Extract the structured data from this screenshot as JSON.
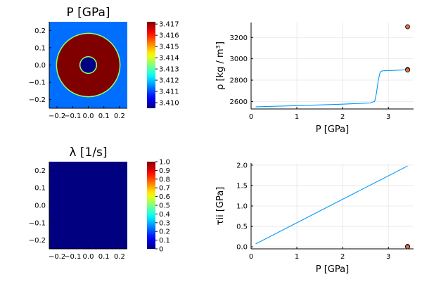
{
  "chart_data": [
    {
      "type": "heatmap",
      "title": "P [GPa]",
      "xticks": [
        "−0.2",
        "−0.1",
        "0.0",
        "0.1",
        "0.2"
      ],
      "xtick_values": [
        -0.2,
        -0.1,
        0.0,
        0.1,
        0.2
      ],
      "yticks": [
        "0.2",
        "0.1",
        "0.0",
        "−0.1",
        "−0.2"
      ],
      "ytick_values": [
        0.2,
        0.1,
        0.0,
        -0.1,
        -0.2
      ],
      "xlim": [
        -0.25,
        0.25
      ],
      "ylim": [
        -0.25,
        0.25
      ],
      "colorbar": {
        "ticks": [
          "3.417",
          "3.416",
          "3.415",
          "3.414",
          "3.413",
          "3.412",
          "3.411",
          "3.410"
        ],
        "tick_values": [
          3.417,
          3.416,
          3.415,
          3.414,
          3.413,
          3.412,
          3.411,
          3.41
        ],
        "range": [
          3.4095,
          3.4172
        ],
        "colormap": "jet"
      },
      "field": {
        "background": 3.4113,
        "inclusion_outer_radius": 0.2,
        "inclusion_value": 3.4172,
        "ring_value": 3.4135,
        "inner_hole_radius": 0.05,
        "inner_value": 3.4095
      }
    },
    {
      "type": "line",
      "title": "",
      "xlabel": "P [GPa]",
      "ylabel": "ρ [kg / m³]",
      "xticks": [
        "0",
        "1",
        "2",
        "3"
      ],
      "xtick_values": [
        0,
        1,
        2,
        3
      ],
      "yticks": [
        "2600",
        "2800",
        "3000",
        "3200"
      ],
      "ytick_values": [
        2600,
        2800,
        3000,
        3200
      ],
      "xlim": [
        0,
        3.55
      ],
      "ylim": [
        2530,
        3340
      ],
      "grid": true,
      "series": [
        {
          "color": "#009af9",
          "x": [
            0.1,
            1.0,
            2.0,
            2.6,
            2.7,
            2.74,
            2.78,
            2.82,
            2.86,
            2.9,
            3.1,
            3.3,
            3.42
          ],
          "y": [
            2550,
            2561,
            2575,
            2586,
            2600,
            2680,
            2800,
            2875,
            2886,
            2888,
            2891,
            2895,
            2898
          ]
        }
      ],
      "markers": {
        "color": "#e26f46",
        "x": [
          3.42,
          3.42,
          3.42
        ],
        "y": [
          3300,
          2900,
          2895
        ]
      }
    },
    {
      "type": "heatmap",
      "title": "λ [1/s]",
      "xticks": [
        "−0.2",
        "−0.1",
        "0.0",
        "0.1",
        "0.2"
      ],
      "xtick_values": [
        -0.2,
        -0.1,
        0.0,
        0.1,
        0.2
      ],
      "yticks": [
        "0.2",
        "0.1",
        "0.0",
        "−0.1",
        "−0.2"
      ],
      "ytick_values": [
        0.2,
        0.1,
        0.0,
        -0.1,
        -0.2
      ],
      "xlim": [
        -0.25,
        0.25
      ],
      "ylim": [
        -0.25,
        0.25
      ],
      "colorbar": {
        "ticks": [
          "1.0",
          "0.9",
          "0.8",
          "0.7",
          "0.6",
          "0.5",
          "0.4",
          "0.3",
          "0.2",
          "0.1",
          "0"
        ],
        "tick_values": [
          1.0,
          0.9,
          0.8,
          0.7,
          0.6,
          0.5,
          0.4,
          0.3,
          0.2,
          0.1,
          0.0
        ],
        "range": [
          0,
          1
        ],
        "colormap": "jet"
      },
      "field": {
        "uniform_value": 0.0
      }
    },
    {
      "type": "line",
      "title": "",
      "xlabel": "P [GPa]",
      "ylabel": "τii [GPa]",
      "xticks": [
        "0",
        "1",
        "2",
        "3"
      ],
      "xtick_values": [
        0,
        1,
        2,
        3
      ],
      "yticks": [
        "0.0",
        "0.5",
        "1.0",
        "1.5",
        "2.0"
      ],
      "ytick_values": [
        0.0,
        0.5,
        1.0,
        1.5,
        2.0
      ],
      "xlim": [
        0,
        3.55
      ],
      "ylim": [
        -0.05,
        2.05
      ],
      "grid": true,
      "series": [
        {
          "color": "#009af9",
          "x": [
            0.1,
            3.42
          ],
          "y": [
            0.07,
            1.98
          ]
        }
      ],
      "markers": {
        "color": "#e26f46",
        "x": [
          3.42,
          3.42,
          3.42
        ],
        "y": [
          0.01,
          0.005,
          0.0
        ]
      }
    }
  ]
}
